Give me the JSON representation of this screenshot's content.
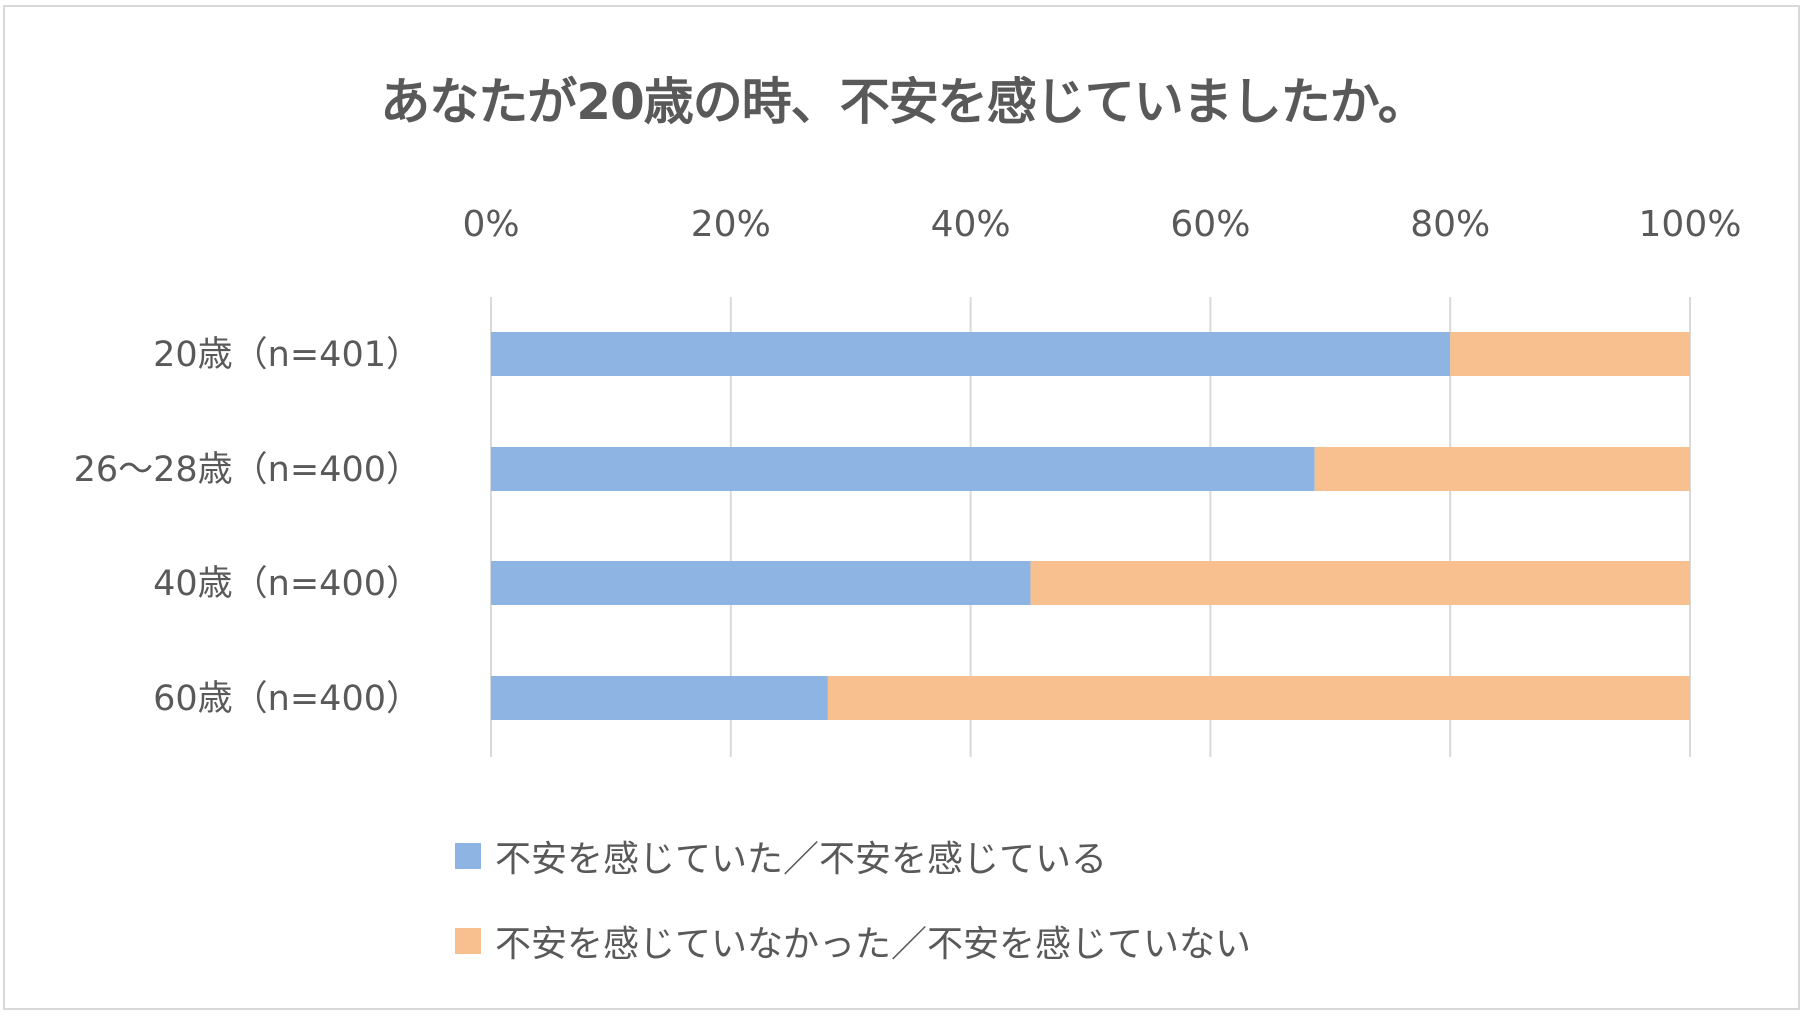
{
  "chart_data": {
    "type": "bar",
    "orientation": "horizontal",
    "stacked": "percent",
    "title": "あなたが20歳の時、不安を感じていましたか。",
    "categories": [
      "20歳（n=401）",
      "26〜28歳（n=400）",
      "40歳（n=400）",
      "60歳（n=400）"
    ],
    "series": [
      {
        "name": "不安を感じていた／不安を感じている",
        "color": "#8eb4e3",
        "values": [
          80.0,
          68.7,
          45.0,
          28.1
        ]
      },
      {
        "name": "不安を感じていなかった／不安を感じていない",
        "color": "#f8c08f",
        "values": [
          20.0,
          31.3,
          55.0,
          71.9
        ]
      }
    ],
    "xlim": [
      0,
      100
    ],
    "xticks": [
      "0%",
      "20%",
      "40%",
      "60%",
      "80%",
      "100%"
    ],
    "xaxis_position": "top",
    "grid": true,
    "legend_position": "bottom-left"
  }
}
